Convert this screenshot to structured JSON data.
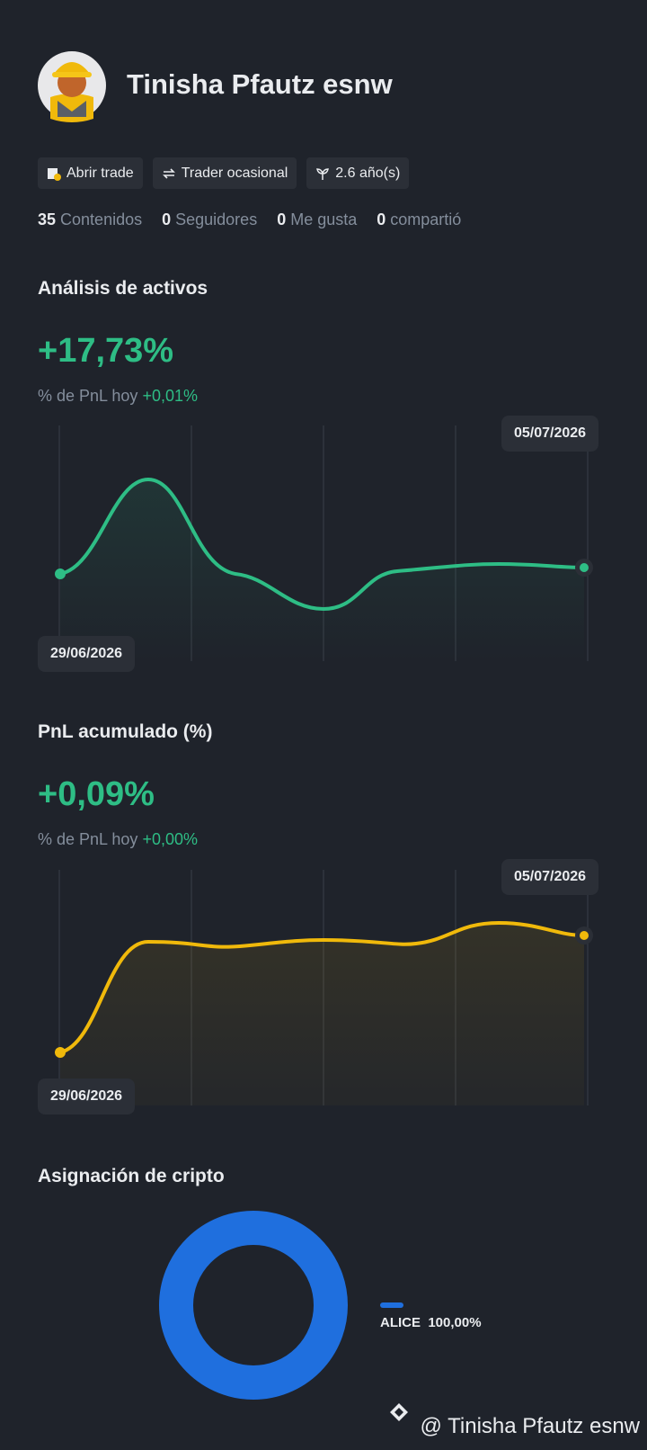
{
  "profile": {
    "name": "Tinisha Pfautz esnw",
    "badges": [
      "Abrir trade",
      "Trader ocasional",
      "2.6 año(s)"
    ],
    "stats": [
      {
        "count": 35,
        "label": "Contenidos"
      },
      {
        "count": 0,
        "label": "Seguidores"
      },
      {
        "count": 0,
        "label": "Me gusta"
      },
      {
        "count": 0,
        "label": "compartió"
      }
    ]
  },
  "asset_analysis": {
    "title": "Análisis de activos",
    "value": "+17,73%",
    "subtitle": "% de PnL hoy",
    "change": "+0,01%",
    "start_date": "29/06/2026",
    "end_date": "05/07/2026"
  },
  "cumulative_pnl": {
    "title": "PnL acumulado (%)",
    "value": "+0,09%",
    "subtitle": "% de PnL hoy",
    "change": "+0,00%",
    "start_date": "29/06/2026",
    "end_date": "05/07/2026"
  },
  "allocation": {
    "title": "Asignación de cripto",
    "items": [
      {
        "name": "ALICE",
        "value": 100,
        "value_label": "100,00%",
        "color": "#1f6fde"
      }
    ]
  },
  "footer": {
    "watermark": "@ Tinisha Pfautz esnw"
  }
}
